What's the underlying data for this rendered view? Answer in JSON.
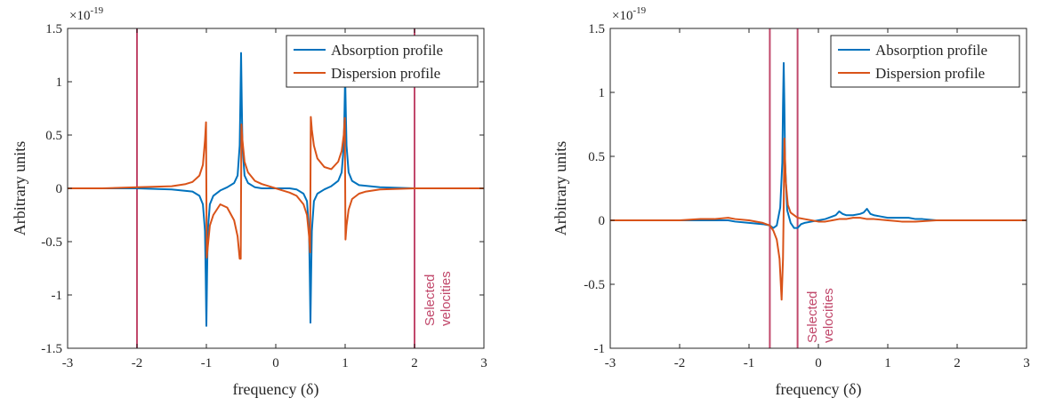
{
  "chart_data": [
    {
      "type": "line",
      "xlabel": "frequency (δ)",
      "ylabel": "Arbitrary units",
      "xlim": [
        -3,
        3
      ],
      "ylim": [
        -1.5,
        1.5
      ],
      "xticks": [
        "-3",
        "-2",
        "-1",
        "0",
        "1",
        "2",
        "3"
      ],
      "yticks": [
        "-1.5",
        "-1",
        "-0.5",
        "0",
        "0.5",
        "1",
        "1.5"
      ],
      "y_exponent_label": "×10",
      "y_exponent_power": "-19",
      "legend_position": "top-right",
      "grid": false,
      "annotation": "Selected velocities",
      "selection_lines_x": [
        -2,
        2
      ],
      "colors": {
        "absorption": "#0072BD",
        "dispersion": "#D95319",
        "selection": "#C1486B"
      },
      "series": [
        {
          "name": "Absorption profile",
          "x": [
            -3,
            -2.5,
            -2,
            -1.5,
            -1.2,
            -1.1,
            -1.05,
            -1.02,
            -1.01,
            -1.0,
            -0.99,
            -0.98,
            -0.95,
            -0.9,
            -0.8,
            -0.7,
            -0.6,
            -0.55,
            -0.52,
            -0.51,
            -0.5,
            -0.49,
            -0.48,
            -0.45,
            -0.4,
            -0.3,
            -0.2,
            -0.1,
            0,
            0.1,
            0.2,
            0.3,
            0.4,
            0.45,
            0.48,
            0.49,
            0.5,
            0.51,
            0.52,
            0.55,
            0.6,
            0.7,
            0.8,
            0.9,
            0.95,
            0.98,
            0.99,
            1.0,
            1.01,
            1.02,
            1.05,
            1.1,
            1.2,
            1.5,
            2,
            2.5,
            3
          ],
          "y": [
            0,
            0,
            0,
            -0.01,
            -0.03,
            -0.07,
            -0.15,
            -0.4,
            -0.8,
            -1.29,
            -0.8,
            -0.4,
            -0.15,
            -0.07,
            -0.02,
            0.01,
            0.05,
            0.12,
            0.4,
            0.8,
            1.27,
            0.8,
            0.4,
            0.12,
            0.05,
            0.01,
            0,
            0,
            0,
            0,
            0,
            -0.01,
            -0.05,
            -0.12,
            -0.4,
            -0.8,
            -1.26,
            -0.8,
            -0.4,
            -0.12,
            -0.05,
            -0.01,
            0.02,
            0.07,
            0.15,
            0.4,
            0.7,
            1.05,
            0.7,
            0.4,
            0.15,
            0.07,
            0.03,
            0.01,
            0,
            0,
            0
          ]
        },
        {
          "name": "Dispersion profile",
          "x": [
            -3,
            -2.5,
            -2,
            -1.5,
            -1.3,
            -1.2,
            -1.1,
            -1.05,
            -1.02,
            -1.005,
            -0.995,
            -0.98,
            -0.95,
            -0.9,
            -0.8,
            -0.7,
            -0.6,
            -0.55,
            -0.52,
            -0.505,
            -0.495,
            -0.48,
            -0.45,
            -0.4,
            -0.3,
            -0.2,
            -0.1,
            0,
            0.1,
            0.2,
            0.3,
            0.4,
            0.45,
            0.48,
            0.495,
            0.505,
            0.52,
            0.55,
            0.6,
            0.7,
            0.8,
            0.9,
            0.95,
            0.98,
            0.995,
            1.005,
            1.02,
            1.05,
            1.1,
            1.2,
            1.3,
            1.5,
            2,
            2.5,
            3
          ],
          "y": [
            0,
            0,
            0.01,
            0.02,
            0.04,
            0.06,
            0.12,
            0.22,
            0.45,
            0.62,
            -0.65,
            -0.55,
            -0.35,
            -0.25,
            -0.15,
            -0.18,
            -0.3,
            -0.45,
            -0.66,
            -0.66,
            0.6,
            0.45,
            0.25,
            0.15,
            0.07,
            0.04,
            0.02,
            0,
            -0.02,
            -0.04,
            -0.07,
            -0.15,
            -0.25,
            -0.45,
            -0.6,
            0.67,
            0.55,
            0.4,
            0.28,
            0.2,
            0.18,
            0.25,
            0.35,
            0.5,
            0.66,
            -0.48,
            -0.35,
            -0.2,
            -0.1,
            -0.05,
            -0.03,
            -0.01,
            0,
            0,
            0
          ]
        }
      ]
    },
    {
      "type": "line",
      "xlabel": "frequency (δ)",
      "ylabel": "Arbitrary units",
      "xlim": [
        -3,
        3
      ],
      "ylim": [
        -1,
        1.5
      ],
      "xticks": [
        "-3",
        "-2",
        "-1",
        "0",
        "1",
        "2",
        "3"
      ],
      "yticks": [
        "-1",
        "-0.5",
        "0",
        "0.5",
        "1",
        "1.5"
      ],
      "y_exponent_label": "×10",
      "y_exponent_power": "-19",
      "legend_position": "top-right",
      "grid": false,
      "annotation": "Selected velocities",
      "selection_lines_x": [
        -0.7,
        -0.3
      ],
      "colors": {
        "absorption": "#0072BD",
        "dispersion": "#D95319",
        "selection": "#C1486B"
      },
      "series": [
        {
          "name": "Absorption profile",
          "x": [
            -3,
            -2,
            -1.7,
            -1.5,
            -1.3,
            -1.2,
            -1.0,
            -0.8,
            -0.7,
            -0.65,
            -0.6,
            -0.55,
            -0.52,
            -0.51,
            -0.5,
            -0.49,
            -0.48,
            -0.45,
            -0.4,
            -0.35,
            -0.3,
            -0.25,
            -0.2,
            -0.1,
            0,
            0.1,
            0.2,
            0.25,
            0.3,
            0.35,
            0.4,
            0.5,
            0.6,
            0.65,
            0.7,
            0.75,
            0.8,
            0.9,
            1.0,
            1.2,
            1.3,
            1.4,
            1.5,
            1.7,
            2,
            2.5,
            3
          ],
          "y": [
            0,
            0,
            0,
            0,
            0,
            -0.01,
            -0.02,
            -0.03,
            -0.04,
            -0.06,
            -0.04,
            0.1,
            0.45,
            0.9,
            1.23,
            0.9,
            0.45,
            0.08,
            -0.02,
            -0.06,
            -0.06,
            -0.03,
            -0.02,
            -0.01,
            0,
            0.01,
            0.03,
            0.04,
            0.07,
            0.05,
            0.04,
            0.04,
            0.05,
            0.06,
            0.09,
            0.05,
            0.04,
            0.03,
            0.02,
            0.02,
            0.02,
            0.01,
            0.01,
            0,
            0,
            0,
            0
          ]
        },
        {
          "name": "Dispersion profile",
          "x": [
            -3,
            -2,
            -1.7,
            -1.5,
            -1.3,
            -1.2,
            -1.0,
            -0.8,
            -0.7,
            -0.65,
            -0.6,
            -0.56,
            -0.53,
            -0.51,
            -0.5,
            -0.49,
            -0.47,
            -0.44,
            -0.4,
            -0.35,
            -0.3,
            -0.2,
            -0.1,
            0,
            0.1,
            0.2,
            0.3,
            0.4,
            0.5,
            0.6,
            0.7,
            0.8,
            1.0,
            1.2,
            1.4,
            1.7,
            2,
            2.5,
            3
          ],
          "y": [
            0,
            0,
            0.01,
            0.01,
            0.02,
            0.01,
            0,
            -0.02,
            -0.04,
            -0.08,
            -0.15,
            -0.3,
            -0.62,
            -0.3,
            0.1,
            0.64,
            0.3,
            0.12,
            0.06,
            0.04,
            0.02,
            0.01,
            0,
            -0.01,
            -0.01,
            0,
            0.01,
            0.01,
            0.02,
            0.02,
            0.01,
            0.01,
            0,
            -0.01,
            -0.01,
            0,
            0,
            0,
            0
          ]
        }
      ]
    }
  ]
}
